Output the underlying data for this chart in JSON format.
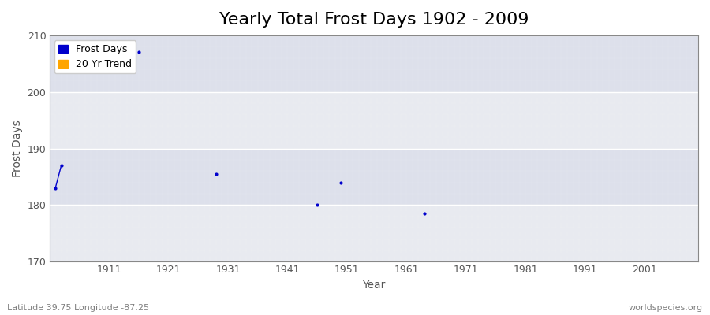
{
  "title": "Yearly Total Frost Days 1902 - 2009",
  "xlabel": "Year",
  "ylabel": "Frost Days",
  "xlim": [
    1901,
    2010
  ],
  "ylim": [
    170,
    210
  ],
  "yticks": [
    170,
    180,
    190,
    200,
    210
  ],
  "xticks": [
    1911,
    1921,
    1931,
    1941,
    1951,
    1961,
    1971,
    1981,
    1991,
    2001
  ],
  "fig_bg_color": "#ffffff",
  "plot_bg_color": "#e8eaf0",
  "plot_bg_upper": "#dde0eb",
  "frost_days_x": [
    1902,
    1903,
    1916,
    1929,
    1946,
    1950,
    1964
  ],
  "frost_days_y": [
    183,
    187,
    207,
    185.5,
    180,
    184,
    178.5
  ],
  "line_x": [
    1902,
    1903
  ],
  "line_y": [
    183,
    187
  ],
  "frost_color": "#0000cc",
  "trend_color": "#ffa500",
  "marker_size": 2,
  "bottom_left_text": "Latitude 39.75 Longitude -87.25",
  "bottom_right_text": "worldspecies.org",
  "title_fontsize": 16,
  "axis_label_fontsize": 10,
  "tick_fontsize": 9,
  "annotation_fontsize": 8,
  "legend_fontsize": 9
}
